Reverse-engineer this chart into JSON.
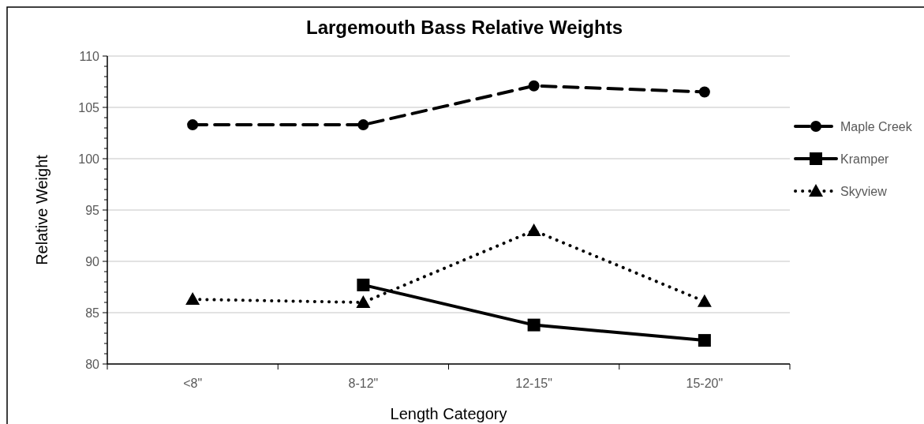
{
  "chart_data": {
    "type": "line",
    "title": "Largemouth Bass Relative Weights",
    "xlabel": "Length Category",
    "ylabel": "Relative Weight",
    "categories": [
      "<8\"",
      "8-12\"",
      "12-15\"",
      "15-20\""
    ],
    "series": [
      {
        "name": "Maple Creek",
        "color": "#000000",
        "values": [
          103.3,
          103.3,
          107.1,
          106.5
        ],
        "marker": "circle",
        "line_style": "dashed"
      },
      {
        "name": "Kramper",
        "color": "#000000",
        "values": [
          null,
          87.7,
          83.8,
          82.3
        ],
        "marker": "square",
        "line_style": "solid"
      },
      {
        "name": "Skyview",
        "color": "#000000",
        "values": [
          86.3,
          86.0,
          93.0,
          86.1
        ],
        "marker": "triangle",
        "line_style": "dotted"
      }
    ],
    "ylim": [
      80,
      110
    ],
    "yticks": [
      80,
      {
        "value": 81,
        "label": null
      },
      {
        "value": 82,
        "label": null
      },
      {
        "value": 83,
        "label": null
      },
      {
        "value": 84,
        "label": null
      },
      85,
      {
        "value": 86,
        "label": null
      },
      {
        "value": 87,
        "label": null
      },
      {
        "value": 88,
        "label": null
      },
      {
        "value": 89,
        "label": null
      },
      90,
      {
        "value": 91,
        "label": null
      },
      {
        "value": 92,
        "label": null
      },
      {
        "value": 93,
        "label": null
      },
      {
        "value": 94,
        "label": null
      },
      95,
      {
        "value": 96,
        "label": null
      },
      {
        "value": 97,
        "label": null
      },
      {
        "value": 98,
        "label": null
      },
      {
        "value": 99,
        "label": null
      },
      100,
      {
        "value": 101,
        "label": null
      },
      {
        "value": 102,
        "label": null
      },
      {
        "value": 103,
        "label": null
      },
      {
        "value": 104,
        "label": null
      },
      105,
      {
        "value": 106,
        "label": null
      },
      {
        "value": 107,
        "label": null
      },
      {
        "value": 108,
        "label": null
      },
      {
        "value": 109,
        "label": null
      },
      110
    ],
    "grid": "y",
    "legend": "right"
  }
}
